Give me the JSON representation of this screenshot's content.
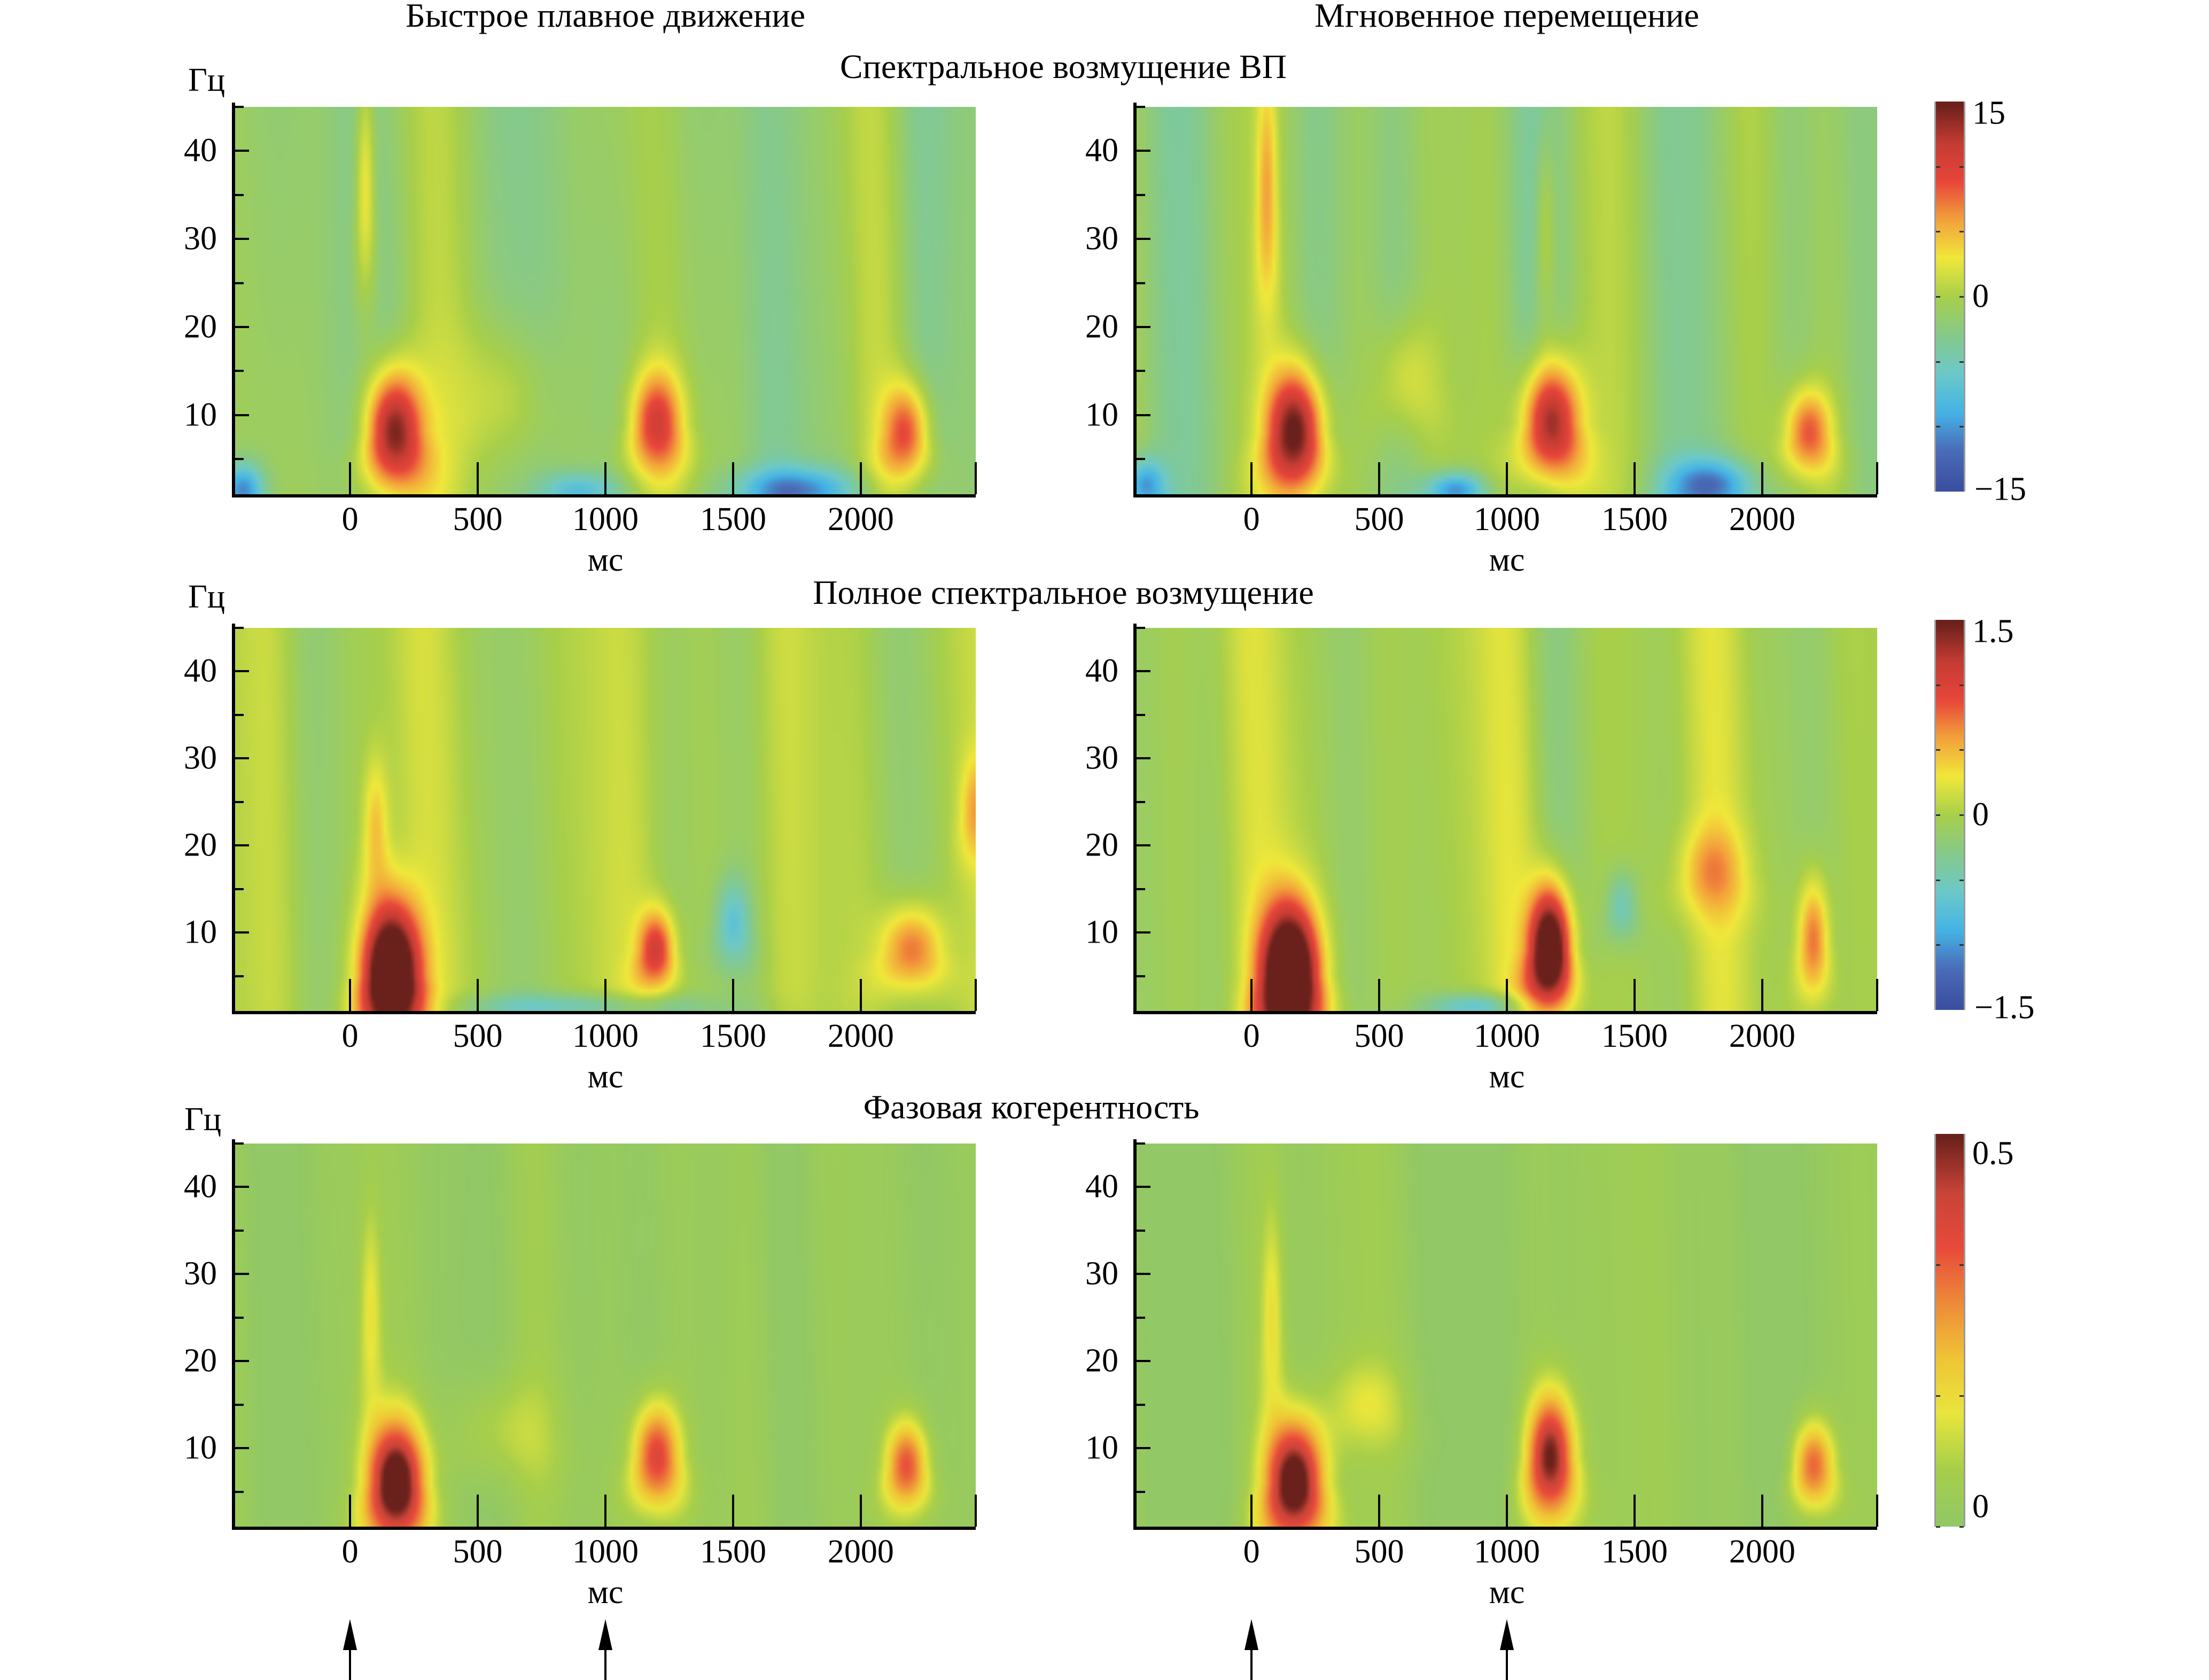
{
  "figure": {
    "column_titles": [
      "Быстрое плавное движение",
      "Мгновенное перемещение"
    ],
    "row_titles": [
      "Спектральное возмущение ВП",
      "Полное спектральное возмущение",
      "Фазовая когерентность"
    ],
    "y_unit": "Гц",
    "x_unit": "мс"
  },
  "chart_data": {
    "type": "heatmap",
    "xlabel": "мс",
    "ylabel": "Гц",
    "xlim": [
      -450,
      2450
    ],
    "ylim": [
      1,
      45
    ],
    "x_ticks": [
      0,
      500,
      1000,
      1500,
      2000
    ],
    "x_tick_labels": [
      "0",
      "500",
      "1000",
      "1500",
      "2000"
    ],
    "y_ticks": [
      10,
      20,
      30,
      40
    ],
    "y_tick_labels": [
      "10",
      "20",
      "30",
      "40"
    ],
    "y_minor_ticks": [
      5,
      15,
      25,
      35,
      45
    ],
    "columns": [
      "Быстрое плавное движение",
      "Мгновенное перемещение"
    ],
    "rows": [
      {
        "title": "Спектральное возмущение ВП",
        "colorbar": {
          "min": -15,
          "max": 15,
          "tick_labels": [
            "15",
            "0",
            "−15"
          ],
          "colormap": "jet-muted"
        },
        "panels": [
          {
            "column": "Быстрое плавное движение",
            "background": -1.5,
            "features": [
              {
                "t": 170,
                "f": 8,
                "dt": 110,
                "df": 7,
                "v": 17,
                "label": "early response"
              },
              {
                "t": 60,
                "f": 35,
                "dt": 40,
                "df": 14,
                "v": 6,
                "label": "high-freq streak"
              },
              {
                "t": 1200,
                "f": 9,
                "dt": 100,
                "df": 6,
                "v": 11
              },
              {
                "t": 2180,
                "f": 8,
                "dt": 90,
                "df": 5.5,
                "v": 10
              },
              {
                "t": 600,
                "f": 12,
                "dt": 200,
                "df": 8,
                "v": 3
              },
              {
                "t": -420,
                "f": 1.5,
                "dt": 80,
                "df": 3,
                "v": -10
              },
              {
                "t": 1750,
                "f": 1.5,
                "dt": 250,
                "df": 2.5,
                "v": -9
              },
              {
                "t": 900,
                "f": 1.5,
                "dt": 150,
                "df": 2,
                "v": -6
              }
            ]
          },
          {
            "column": "Мгновенное перемещение",
            "background": -1.5,
            "features": [
              {
                "t": 170,
                "f": 8,
                "dt": 110,
                "df": 7,
                "v": 17
              },
              {
                "t": 60,
                "f": 35,
                "dt": 40,
                "df": 14,
                "v": 6
              },
              {
                "t": 1170,
                "f": 9,
                "dt": 110,
                "df": 7,
                "v": 17
              },
              {
                "t": 1150,
                "f": 30,
                "dt": 40,
                "df": 12,
                "v": 4
              },
              {
                "t": 2180,
                "f": 8,
                "dt": 90,
                "df": 5,
                "v": 10
              },
              {
                "t": 600,
                "f": 14,
                "dt": 120,
                "df": 7,
                "v": 4
              },
              {
                "t": -420,
                "f": 2,
                "dt": 80,
                "df": 3,
                "v": -9
              },
              {
                "t": 800,
                "f": 1.5,
                "dt": 120,
                "df": 2,
                "v": -10
              },
              {
                "t": 1800,
                "f": 2,
                "dt": 180,
                "df": 3,
                "v": -10
              }
            ]
          }
        ]
      },
      {
        "title": "Полное спектральное возмущение",
        "colorbar": {
          "min": -1.5,
          "max": 1.5,
          "tick_labels": [
            "1.5",
            "0",
            "−1.5"
          ],
          "colormap": "jet-muted"
        },
        "panels": [
          {
            "column": "Быстрое плавное движение",
            "background": 0,
            "features": [
              {
                "t": 160,
                "f": 5,
                "dt": 110,
                "df": 8,
                "v": 2.4
              },
              {
                "t": 100,
                "f": 22,
                "dt": 50,
                "df": 8,
                "v": 0.5
              },
              {
                "t": 1200,
                "f": 8,
                "dt": 70,
                "df": 4.5,
                "v": 1.1
              },
              {
                "t": 2200,
                "f": 8,
                "dt": 120,
                "df": 5,
                "v": 0.9
              },
              {
                "t": 1500,
                "f": 11,
                "dt": 70,
                "df": 5,
                "v": -0.6
              },
              {
                "t": 2450,
                "f": 24,
                "dt": 60,
                "df": 6,
                "v": 0.5
              },
              {
                "t": 900,
                "f": 1.5,
                "dt": 500,
                "df": 1.5,
                "v": -0.5
              }
            ]
          },
          {
            "column": "Мгновенное перемещение",
            "background": 0,
            "features": [
              {
                "t": 150,
                "f": 5,
                "dt": 110,
                "df": 8,
                "v": 2.4
              },
              {
                "t": 1170,
                "f": 8,
                "dt": 80,
                "df": 7,
                "v": 2.2
              },
              {
                "t": 1800,
                "f": 17,
                "dt": 130,
                "df": 5,
                "v": 0.5
              },
              {
                "t": 2200,
                "f": 9,
                "dt": 60,
                "df": 7,
                "v": 0.9
              },
              {
                "t": 1450,
                "f": 13,
                "dt": 60,
                "df": 4,
                "v": -0.5
              },
              {
                "t": 900,
                "f": 1.5,
                "dt": 200,
                "df": 1.5,
                "v": -0.7
              }
            ]
          }
        ]
      },
      {
        "title": "Фазовая когерентность",
        "colorbar": {
          "min": 0,
          "max": 0.5,
          "tick_labels": [
            "0.5",
            "0"
          ],
          "colormap": "green-red"
        },
        "panels": [
          {
            "column": "Быстрое плавное движение",
            "background": 0.02,
            "features": [
              {
                "t": 180,
                "f": 6,
                "dt": 110,
                "df": 7,
                "v": 0.55
              },
              {
                "t": 80,
                "f": 25,
                "dt": 40,
                "df": 12,
                "v": 0.12
              },
              {
                "t": 1200,
                "f": 9,
                "dt": 90,
                "df": 6,
                "v": 0.38
              },
              {
                "t": 2180,
                "f": 8,
                "dt": 80,
                "df": 5,
                "v": 0.33
              },
              {
                "t": 600,
                "f": 12,
                "dt": 200,
                "df": 6,
                "v": 0.08
              }
            ]
          },
          {
            "column": "Мгновенное перемещение",
            "background": 0.02,
            "features": [
              {
                "t": 170,
                "f": 6,
                "dt": 110,
                "df": 7,
                "v": 0.55
              },
              {
                "t": 80,
                "f": 25,
                "dt": 40,
                "df": 12,
                "v": 0.12
              },
              {
                "t": 1170,
                "f": 9,
                "dt": 90,
                "df": 7,
                "v": 0.48
              },
              {
                "t": 2200,
                "f": 8,
                "dt": 80,
                "df": 5,
                "v": 0.32
              },
              {
                "t": 450,
                "f": 15,
                "dt": 150,
                "df": 5,
                "v": 0.1
              }
            ]
          }
        ]
      }
    ],
    "event_markers_ms": [
      [
        0,
        1000
      ],
      [
        0,
        1000
      ]
    ]
  },
  "colors": {
    "jet_muted": [
      "#3b4fa0",
      "#4a6cb8",
      "#45b4e6",
      "#6cc9c9",
      "#86c98a",
      "#a8cf4a",
      "#f0e83a",
      "#f3a23a",
      "#e8453a",
      "#c43c33",
      "#6b211b"
    ],
    "green_red": [
      "#92c865",
      "#a8cf4a",
      "#e8e63c",
      "#f0c436",
      "#ee8a39",
      "#e84a3a",
      "#c84438",
      "#6b211b"
    ]
  }
}
